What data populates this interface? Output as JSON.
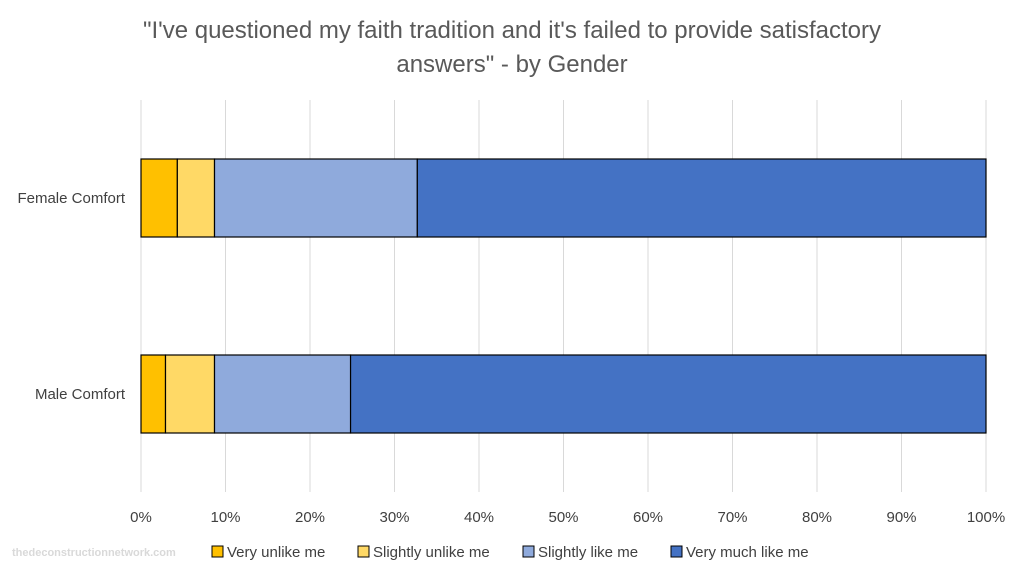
{
  "chart_data": {
    "type": "bar",
    "orientation": "horizontal",
    "stacked": "100%",
    "title_lines": [
      "\"I've questioned my faith tradition and it's failed to provide satisfactory",
      "answers\" - by Gender"
    ],
    "categories": [
      "Female Comfort",
      "Male Comfort"
    ],
    "series": [
      {
        "name": "Very unlike me",
        "color": "#FFC000",
        "values": [
          4.3,
          2.9
        ]
      },
      {
        "name": "Slightly unlike me",
        "color": "#FFD966",
        "values": [
          4.4,
          5.8
        ]
      },
      {
        "name": "Slightly like me",
        "color": "#8FAADC",
        "values": [
          24.0,
          16.1
        ]
      },
      {
        "name": "Very much like me",
        "color": "#4472C4",
        "values": [
          67.3,
          75.2
        ]
      }
    ],
    "xlim": [
      0,
      100
    ],
    "x_ticks": [
      "0%",
      "10%",
      "20%",
      "30%",
      "40%",
      "50%",
      "60%",
      "70%",
      "80%",
      "90%",
      "100%"
    ],
    "grid": true,
    "legend_position": "bottom"
  },
  "watermark": "thedeconstructionnetwork.com"
}
